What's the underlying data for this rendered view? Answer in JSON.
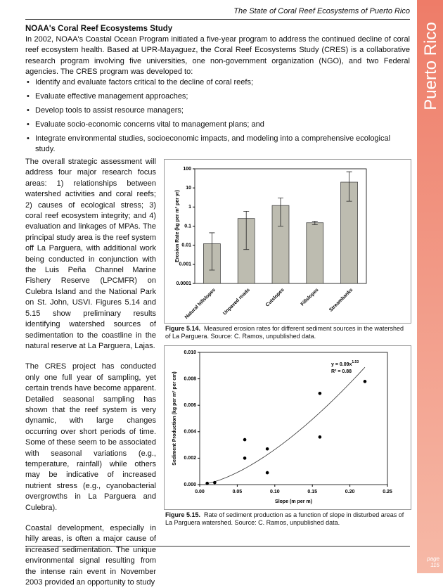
{
  "header": {
    "title": "The State of Coral Reef Ecosystems of Puerto Rico"
  },
  "side_tab": {
    "label": "Puerto Rico"
  },
  "section": {
    "heading": "NOAA's Coral Reef Ecosystems Study",
    "intro": "In 2002, NOAA's Coastal Ocean Program initiated a five-year program to address the continued decline of coral reef ecosystem health.  Based at UPR-Mayaguez, the Coral Reef Ecosystems Study (CRES) is a collaborative research program involving five universities, one non-government organization (NGO), and two Federal agencies.  The CRES program was developed to:",
    "bullets": [
      "Identify and evaluate factors critical to the decline of coral reefs;",
      "Evaluate effective management approaches;",
      "Develop tools to assist resource managers;",
      "Evaluate socio-economic concerns vital to management plans; and",
      "Integrate environmental studies, socioeconomic impacts, and modeling into a comprehensive ecological study."
    ]
  },
  "body": [
    "The overall strategic assessment will address four major research focus areas: 1) relationships between watershed activities and coral reefs; 2) causes of ecological stress; 3) coral reef ecosystem integrity; and 4) evaluation and linkages of MPAs. The principal study area is the reef system off La Parguera, with additional work being conducted in conjunction with the Luis Peña Channel Marine Fishery Reserve (LPCMFR) on Culebra Island and the National Park on St. John, USVI.  Figures 5.14 and 5.15 show preliminary results identifying watershed sources of sedimentation to the coastline in the natural reserve at La Parguera, Lajas.",
    "The CRES project has conducted only one full year of sampling, yet certain trends have become apparent.  Detailed seasonal sampling has shown that the reef system is very dynamic, with large changes occurring over short periods of time.  Some of these seem to be associated with seasonal variations (e.g., temperature, rainfall) while others may be indicative of increased nutrient stress (e.g., cyanobacterial overgrowths in La Parguera and Culebra).",
    "Coastal development, especially in hilly areas, is often a major cause of increased sedimentation.  The unique environmental signal resulting from the intense rain event in November 2003 provided an opportunity to study"
  ],
  "captions": [
    {
      "label": "Figure 5.14.",
      "text": "Measured erosion rates for different sediment sources in the watershed of La Parguera.  Source: C. Ramos, unpublished data."
    },
    {
      "label": "Figure 5.15.",
      "text": "Rate of sediment production as a function of slope in disturbed areas of La Parguera watershed.  Source: C. Ramos, unpublished data."
    }
  ],
  "footer": {
    "label": "page",
    "number": "115"
  },
  "chart_data": [
    {
      "type": "bar",
      "y_label": "Erosion Rate (kg per m² per yr)",
      "log_scale": true,
      "color": "#bdbcb0",
      "categories": [
        "Natural hillslopes",
        "Unpaved roads",
        "Cutslopes",
        "Fillslopes",
        "Streambanks"
      ],
      "values": [
        0.012,
        0.25,
        1.2,
        0.15,
        20
      ],
      "error_low": [
        0.0005,
        0.006,
        0.1,
        0.12,
        2
      ],
      "error_high": [
        0.045,
        0.6,
        3,
        0.18,
        70
      ],
      "ylim": [
        0.0001,
        100
      ],
      "yticks": [
        0.0001,
        0.001,
        0.01,
        0.1,
        1,
        10,
        100
      ]
    },
    {
      "type": "scatter",
      "x_label": "Slope (m per m)",
      "y_label": "Sediment Production (kg per m² per cm)",
      "color": "#000000",
      "x": [
        0.01,
        0.02,
        0.06,
        0.06,
        0.09,
        0.09,
        0.16,
        0.16,
        0.22
      ],
      "values": [
        0.0001,
        0.00015,
        0.0034,
        0.002,
        0.0027,
        0.0009,
        0.0069,
        0.0036,
        0.0078
      ],
      "trendline": {
        "coefficient": 0.09,
        "exponent": 1.53,
        "label": "y = 0.09x",
        "label_exponent": "1.53",
        "r_squared": "R² = 0.88"
      },
      "xlim": [
        0,
        0.25
      ],
      "xticks": [
        {
          "value": 0,
          "label": "0.00"
        },
        {
          "value": 0.05,
          "label": "0.05"
        },
        {
          "value": 0.1,
          "label": "0.10"
        },
        {
          "value": 0.15,
          "label": "0.15"
        },
        {
          "value": 0.2,
          "label": "0.20"
        },
        {
          "value": 0.25,
          "label": "0.25"
        }
      ],
      "ylim": [
        0,
        0.01
      ],
      "yticks": [
        {
          "value": 0,
          "label": "0.000"
        },
        {
          "value": 0.002,
          "label": "0.002"
        },
        {
          "value": 0.004,
          "label": "0.004"
        },
        {
          "value": 0.006,
          "label": "0.006"
        },
        {
          "value": 0.008,
          "label": "0.008"
        },
        {
          "value": 0.01,
          "label": "0.010"
        }
      ]
    }
  ]
}
